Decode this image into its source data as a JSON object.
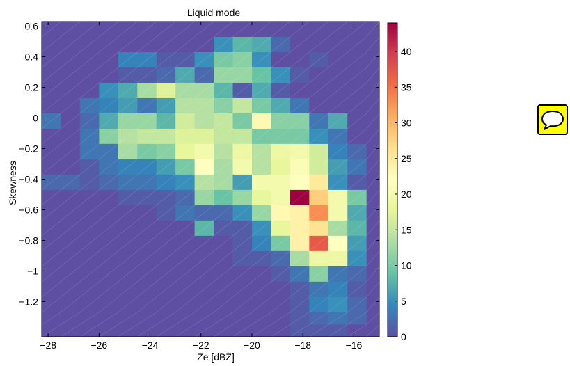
{
  "chart_data": {
    "type": "heatmap",
    "title": "Liquid mode",
    "xlabel": "Ze [dBZ]",
    "ylabel": "Skewness",
    "xlim": [
      -28.25,
      -15.0
    ],
    "ylim": [
      -1.43,
      0.63
    ],
    "x_ticks": [
      -28,
      -26,
      -24,
      -22,
      -20,
      -18,
      -16
    ],
    "x_tick_labels": [
      "−28",
      "−26",
      "−24",
      "−22",
      "−20",
      "−18",
      "−16"
    ],
    "y_ticks": [
      0.6,
      0.4,
      0.2,
      0,
      -0.2,
      -0.4,
      -0.6,
      -0.8,
      -1,
      -1.2
    ],
    "y_tick_labels": [
      "0.6",
      "0.4",
      "0.2",
      "0",
      "−0.2",
      "−0.4",
      "−0.6",
      "−0.8",
      "−1",
      "−1.2"
    ],
    "colorbar": {
      "min": 0,
      "max": 44,
      "ticks": [
        0,
        5,
        10,
        15,
        20,
        25,
        30,
        35,
        40
      ],
      "tick_labels": [
        "0",
        "5",
        "10",
        "15",
        "20",
        "25",
        "30",
        "35",
        "40"
      ],
      "colormap": "spectral-reversed"
    },
    "x_bin_edges": [
      -28.25,
      -27.5,
      -26.75,
      -26.0,
      -25.25,
      -24.5,
      -23.75,
      -23.0,
      -22.25,
      -21.5,
      -20.75,
      -20.0,
      -19.25,
      -18.5,
      -17.75,
      -17.0,
      -16.25,
      -15.5,
      -15.0
    ],
    "y_bin_edges": [
      0.63,
      0.53,
      0.43,
      0.33,
      0.23,
      0.13,
      0.03,
      -0.07,
      -0.17,
      -0.27,
      -0.37,
      -0.47,
      -0.57,
      -0.67,
      -0.77,
      -0.87,
      -0.97,
      -1.07,
      -1.17,
      -1.27,
      -1.35,
      -1.43
    ],
    "grid": false,
    "values": [
      [
        0,
        0,
        0,
        0,
        0,
        0,
        0,
        0,
        0,
        0,
        0,
        0,
        0,
        0,
        0,
        0,
        0,
        0
      ],
      [
        0,
        0,
        0,
        0,
        0,
        0,
        0,
        0,
        0,
        5,
        8,
        7,
        2,
        0,
        0,
        0,
        0,
        0
      ],
      [
        0,
        0,
        0,
        0,
        4,
        4,
        1,
        1,
        5,
        10,
        11,
        5,
        0,
        0,
        1,
        0,
        0,
        0
      ],
      [
        0,
        0,
        0,
        0,
        1,
        1,
        2,
        7,
        2,
        12,
        12,
        9,
        5,
        1,
        0,
        0,
        0,
        0
      ],
      [
        0,
        0,
        0,
        5,
        7,
        13,
        17,
        13,
        13,
        8,
        1,
        7,
        1,
        0,
        0,
        0,
        0,
        0
      ],
      [
        0,
        0,
        3,
        4,
        6,
        3,
        6,
        14,
        14,
        11,
        15,
        10,
        7,
        3,
        0,
        0,
        0,
        0
      ],
      [
        3,
        0,
        2,
        7,
        12,
        12,
        8,
        16,
        14,
        15,
        10,
        23,
        11,
        11,
        3,
        7,
        0,
        0
      ],
      [
        0,
        0,
        3,
        11,
        14,
        15,
        15,
        17,
        17,
        15,
        15,
        10,
        10,
        10,
        5,
        3,
        0,
        0
      ],
      [
        0,
        0,
        3,
        3,
        13,
        10,
        11,
        18,
        20,
        14,
        19,
        14,
        19,
        20,
        16,
        4,
        2,
        0
      ],
      [
        0,
        0,
        1,
        3,
        4,
        4,
        6,
        10,
        22,
        13,
        20,
        14,
        18,
        21,
        16,
        6,
        3,
        0
      ],
      [
        2,
        2,
        1,
        2,
        3,
        3,
        4,
        5,
        14,
        13,
        6,
        20,
        20,
        22,
        25,
        5,
        1,
        0
      ],
      [
        0,
        0,
        0,
        0,
        1,
        1,
        1,
        2,
        12,
        9,
        12,
        18,
        20,
        44,
        28,
        20,
        10,
        0
      ],
      [
        0,
        0,
        0,
        0,
        0,
        0,
        1,
        3,
        2,
        2,
        5,
        12,
        23,
        24,
        33,
        20,
        7,
        0
      ],
      [
        0,
        0,
        0,
        0,
        0,
        0,
        0,
        0,
        8,
        1,
        1,
        5,
        18,
        24,
        26,
        13,
        8,
        0
      ],
      [
        0,
        0,
        0,
        0,
        0,
        0,
        0,
        0,
        0,
        0,
        1,
        4,
        10,
        24,
        37,
        22,
        6,
        0
      ],
      [
        0,
        0,
        0,
        0,
        0,
        0,
        0,
        0,
        0,
        0,
        1,
        1,
        2,
        13,
        19,
        19,
        5,
        0
      ],
      [
        0,
        0,
        0,
        0,
        0,
        0,
        0,
        0,
        0,
        0,
        0,
        0,
        1,
        3,
        11,
        3,
        2,
        0
      ],
      [
        0,
        0,
        0,
        0,
        0,
        0,
        0,
        0,
        0,
        0,
        0,
        0,
        0,
        1,
        3,
        4,
        1,
        0
      ],
      [
        0,
        0,
        0,
        0,
        0,
        0,
        0,
        0,
        0,
        0,
        0,
        0,
        0,
        1,
        4,
        5,
        2,
        0
      ],
      [
        0,
        0,
        0,
        0,
        0,
        0,
        0,
        0,
        0,
        0,
        0,
        0,
        0,
        1,
        2,
        3,
        2,
        0
      ],
      [
        0,
        0,
        0,
        0,
        0,
        0,
        0,
        0,
        0,
        0,
        0,
        0,
        0,
        1,
        1,
        1,
        0,
        0
      ]
    ]
  },
  "comment_button": {
    "icon": "speech-bubble-icon",
    "color": "#ffff00"
  }
}
